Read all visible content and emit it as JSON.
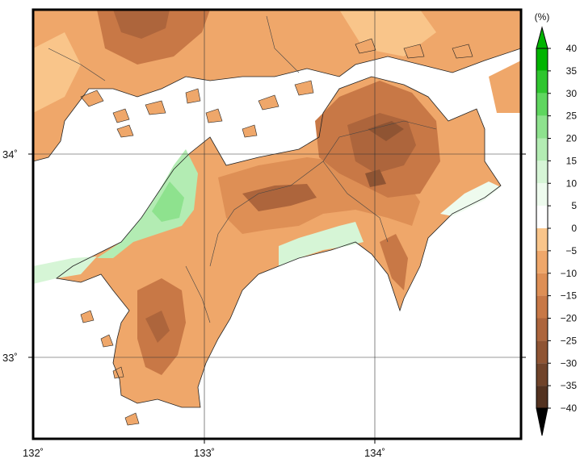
{
  "map": {
    "lon_labels": [
      "132˚",
      "133˚",
      "134˚"
    ],
    "lat_labels": [
      "34˚",
      "33˚"
    ],
    "colorbar": {
      "unit": "(%)",
      "ticks": [
        "40",
        "35",
        "30",
        "25",
        "20",
        "15",
        "10",
        "5",
        "0",
        "−5",
        "−10",
        "−15",
        "−20",
        "−25",
        "−30",
        "−35",
        "−40"
      ],
      "colors": [
        "#00b400",
        "#2fc62f",
        "#5fd65f",
        "#8ee28e",
        "#b3ecb3",
        "#d6f5d6",
        "#eefbee",
        "#ffffff",
        "#f9c58a",
        "#efa76a",
        "#de8f55",
        "#c87846",
        "#ad653c",
        "#8f5433",
        "#70432a",
        "#533220"
      ]
    }
  }
}
